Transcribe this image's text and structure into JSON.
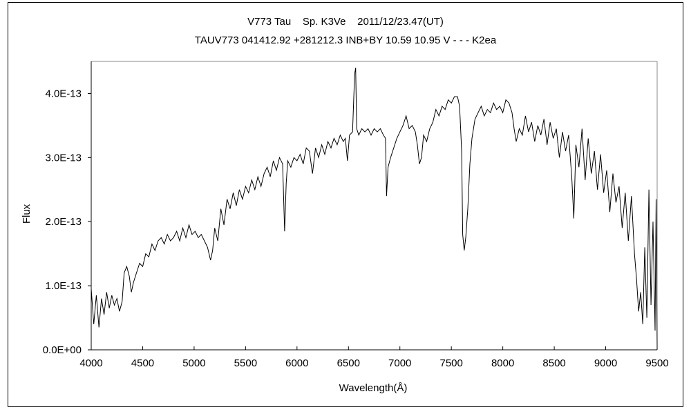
{
  "chart_data": {
    "type": "line",
    "title": "V773 Tau    Sp. K3Ve    2011/12/23.47(UT)",
    "subtitle": "TAUV773 041412.92 +281212.3 INB+BY 10.59 10.95 V - - - K2ea",
    "xlabel": "Wavelength(Å)",
    "ylabel": "Flux",
    "xlim": [
      4000,
      9500
    ],
    "ylim": [
      0,
      4.5e-13
    ],
    "xticks": [
      "4000",
      "4500",
      "5000",
      "5500",
      "6000",
      "6500",
      "7000",
      "7500",
      "8000",
      "8500",
      "9000",
      "9500"
    ],
    "yticks": [
      "0.0E+00",
      "1.0E-13",
      "2.0E-13",
      "3.0E-13",
      "4.0E-13"
    ],
    "grid": false,
    "line_color": "#000000",
    "x": [
      4000,
      4025,
      4050,
      4075,
      4100,
      4125,
      4150,
      4175,
      4200,
      4225,
      4250,
      4275,
      4300,
      4320,
      4345,
      4370,
      4390,
      4410,
      4440,
      4470,
      4500,
      4530,
      4560,
      4590,
      4620,
      4650,
      4680,
      4710,
      4740,
      4770,
      4800,
      4830,
      4860,
      4890,
      4920,
      4950,
      4980,
      5010,
      5040,
      5070,
      5100,
      5130,
      5160,
      5180,
      5200,
      5230,
      5260,
      5290,
      5320,
      5350,
      5380,
      5410,
      5440,
      5470,
      5500,
      5530,
      5560,
      5590,
      5620,
      5650,
      5680,
      5710,
      5740,
      5770,
      5800,
      5830,
      5860,
      5880,
      5895,
      5910,
      5940,
      5970,
      6000,
      6030,
      6060,
      6090,
      6120,
      6150,
      6180,
      6210,
      6240,
      6270,
      6300,
      6330,
      6360,
      6390,
      6420,
      6450,
      6470,
      6490,
      6510,
      6540,
      6560,
      6570,
      6580,
      6600,
      6630,
      6660,
      6690,
      6720,
      6750,
      6780,
      6810,
      6840,
      6860,
      6870,
      6885,
      6910,
      6940,
      6970,
      7000,
      7030,
      7060,
      7090,
      7120,
      7150,
      7170,
      7190,
      7210,
      7230,
      7260,
      7290,
      7320,
      7350,
      7380,
      7410,
      7440,
      7470,
      7500,
      7530,
      7560,
      7580,
      7600,
      7610,
      7625,
      7640,
      7660,
      7680,
      7700,
      7730,
      7760,
      7790,
      7820,
      7850,
      7880,
      7910,
      7940,
      7970,
      8000,
      8030,
      8060,
      8090,
      8110,
      8130,
      8160,
      8190,
      8220,
      8250,
      8280,
      8310,
      8340,
      8370,
      8400,
      8430,
      8460,
      8490,
      8520,
      8550,
      8580,
      8610,
      8640,
      8670,
      8690,
      8710,
      8740,
      8770,
      8800,
      8830,
      8860,
      8890,
      8920,
      8950,
      8980,
      9010,
      9040,
      9070,
      9100,
      9130,
      9160,
      9190,
      9220,
      9250,
      9280,
      9300,
      9320,
      9340,
      9360,
      9380,
      9400,
      9420,
      9440,
      9460,
      9480,
      9490,
      9500
    ],
    "y": [
      9.5e-14,
      4e-14,
      8.5e-14,
      3.5e-14,
      8e-14,
      5.5e-14,
      9e-14,
      6.5e-14,
      8.5e-14,
      7e-14,
      8e-14,
      6e-14,
      7.5e-14,
      1.2e-13,
      1.3e-13,
      1.15e-13,
      9e-14,
      1.05e-13,
      1.2e-13,
      1.35e-13,
      1.3e-13,
      1.5e-13,
      1.45e-13,
      1.65e-13,
      1.55e-13,
      1.7e-13,
      1.75e-13,
      1.65e-13,
      1.8e-13,
      1.7e-13,
      1.75e-13,
      1.85e-13,
      1.7e-13,
      1.9e-13,
      1.75e-13,
      1.95e-13,
      1.8e-13,
      1.85e-13,
      1.75e-13,
      1.8e-13,
      1.7e-13,
      1.6e-13,
      1.4e-13,
      1.55e-13,
      1.9e-13,
      1.7e-13,
      2.2e-13,
      1.95e-13,
      2.35e-13,
      2.2e-13,
      2.45e-13,
      2.25e-13,
      2.5e-13,
      2.35e-13,
      2.55e-13,
      2.45e-13,
      2.65e-13,
      2.5e-13,
      2.7e-13,
      2.55e-13,
      2.75e-13,
      2.85e-13,
      2.7e-13,
      2.95e-13,
      2.8e-13,
      3e-13,
      2.9e-13,
      1.85e-13,
      2.6e-13,
      2.95e-13,
      2.85e-13,
      3e-13,
      2.95e-13,
      3.05e-13,
      2.9e-13,
      3.15e-13,
      3.1e-13,
      2.75e-13,
      3.15e-13,
      3e-13,
      3.2e-13,
      3.05e-13,
      3.25e-13,
      3.15e-13,
      3.3e-13,
      3.2e-13,
      3.35e-13,
      3.25e-13,
      3.3e-13,
      2.95e-13,
      3.35e-13,
      3.4e-13,
      4.3e-13,
      4.4e-13,
      3.45e-13,
      3.35e-13,
      3.45e-13,
      3.4e-13,
      3.45e-13,
      3.35e-13,
      3.45e-13,
      3.4e-13,
      3.45e-13,
      3.35e-13,
      3.3e-13,
      2.4e-13,
      2.85e-13,
      3e-13,
      3.15e-13,
      3.3e-13,
      3.4e-13,
      3.5e-13,
      3.65e-13,
      3.45e-13,
      3.5e-13,
      3.4e-13,
      3.2e-13,
      2.9e-13,
      3e-13,
      3.35e-13,
      3.25e-13,
      3.45e-13,
      3.55e-13,
      3.75e-13,
      3.65e-13,
      3.8e-13,
      3.75e-13,
      3.9e-13,
      3.85e-13,
      3.95e-13,
      3.95e-13,
      3.8e-13,
      3.1e-13,
      1.8e-13,
      1.55e-13,
      1.75e-13,
      2.2e-13,
      2.9e-13,
      3.3e-13,
      3.6e-13,
      3.7e-13,
      3.8e-13,
      3.65e-13,
      3.75e-13,
      3.7e-13,
      3.85e-13,
      3.75e-13,
      3.8e-13,
      3.7e-13,
      3.9e-13,
      3.85e-13,
      3.7e-13,
      3.45e-13,
      3.25e-13,
      3.45e-13,
      3.35e-13,
      3.65e-13,
      3.4e-13,
      3.55e-13,
      3.25e-13,
      3.5e-13,
      3.35e-13,
      3.6e-13,
      3.2e-13,
      3.55e-13,
      3.3e-13,
      3.45e-13,
      3e-13,
      3.4e-13,
      3.1e-13,
      3.35e-13,
      2.7e-13,
      2.05e-13,
      3.2e-13,
      2.85e-13,
      3.45e-13,
      2.65e-13,
      3.3e-13,
      2.75e-13,
      3.1e-13,
      2.5e-13,
      3.05e-13,
      2.45e-13,
      2.8e-13,
      2.15e-13,
      2.75e-13,
      2.3e-13,
      2.55e-13,
      1.9e-13,
      2.45e-13,
      1.7e-13,
      2.4e-13,
      1.5e-13,
      1.1e-13,
      6e-14,
      9e-14,
      4e-14,
      1.6e-13,
      5e-14,
      2.5e-13,
      7e-14,
      2e-13,
      3e-14,
      2.35e-13,
      5e-15
    ]
  }
}
